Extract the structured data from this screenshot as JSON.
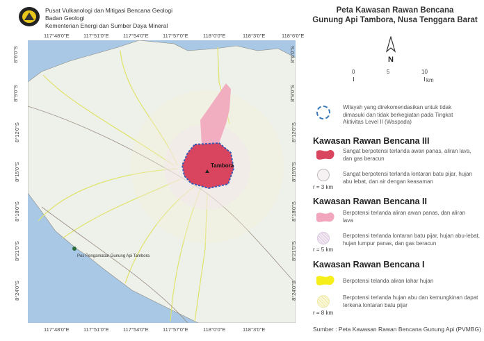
{
  "header": {
    "org_lines": [
      "Pusat Vulkanologi dan Mitigasi Bencana Geologi",
      "Badan Geologi",
      "Kementerian Energi dan Sumber Daya Mineral"
    ],
    "title_lines": [
      "Peta Kawasan Rawan Bencana",
      "Gunung Api Tambora, Nusa Tenggara Barat"
    ]
  },
  "map": {
    "lon_ticks": [
      "117°48'0\"E",
      "117°51'0\"E",
      "117°54'0\"E",
      "117°57'0\"E",
      "118°0'0\"E",
      "118°3'0\"E",
      "118°6'0\"E"
    ],
    "lat_ticks": [
      "8°6'0\"S",
      "8°9'0\"S",
      "8°12'0\"S",
      "8°15'0\"S",
      "8°18'0\"S",
      "8°21'0\"S",
      "8°24'0\"S"
    ],
    "volcano_label": "Tambora",
    "post_label": "Pos Pengamatan Gunung Api Tambora",
    "colors": {
      "sea": "#a9c8e6",
      "land": "#eef0ea",
      "krb3": "#d9455f",
      "krb2": "#f2a6bd",
      "exclusion": "#3b5bb5",
      "rivers": "#e1e76a"
    }
  },
  "north": {
    "label": "N"
  },
  "scale": {
    "labels": [
      "0",
      "5",
      "10"
    ],
    "unit": "km"
  },
  "legend": {
    "exclusion_text": "Wilayah yang direkomendasikan untuk tidak dimasuki dan tidak berkegiatan pada Tingkat Aktivitas Level II (Waspada)",
    "krb3": {
      "title": "Kawasan Rawan Bencana III",
      "flow": "Sangat berpotensi terlanda awan panas, aliran lava, dan gas beracun",
      "radius_text": "Sangat berpotensi terlanda lontaran batu pijar, hujan abu lebat, dan air dengan keasaman",
      "radius": "r = 3 km"
    },
    "krb2": {
      "title": "Kawasan Rawan Bencana II",
      "flow": "Berpotensi terlanda aliran awan panas, dan aliran lava",
      "radius_text": "Berpotensi terlanda lontaran batu pijar, hujan abu-lebat, hujan lumpur panas, dan gas beracun",
      "radius": "r = 5 km"
    },
    "krb1": {
      "title": "Kawasan Rawan Bencana I",
      "flow": "Berpotensi telanda aliran lahar hujan",
      "radius_text": "Berpotensi terlanda hujan abu dan kemungkinan dapat terkena lontaran batu pijar",
      "radius": "r = 8 km"
    }
  },
  "source": "Sumber : Peta Kawasan Rawan Bencana Gunung Api (PVMBG)"
}
